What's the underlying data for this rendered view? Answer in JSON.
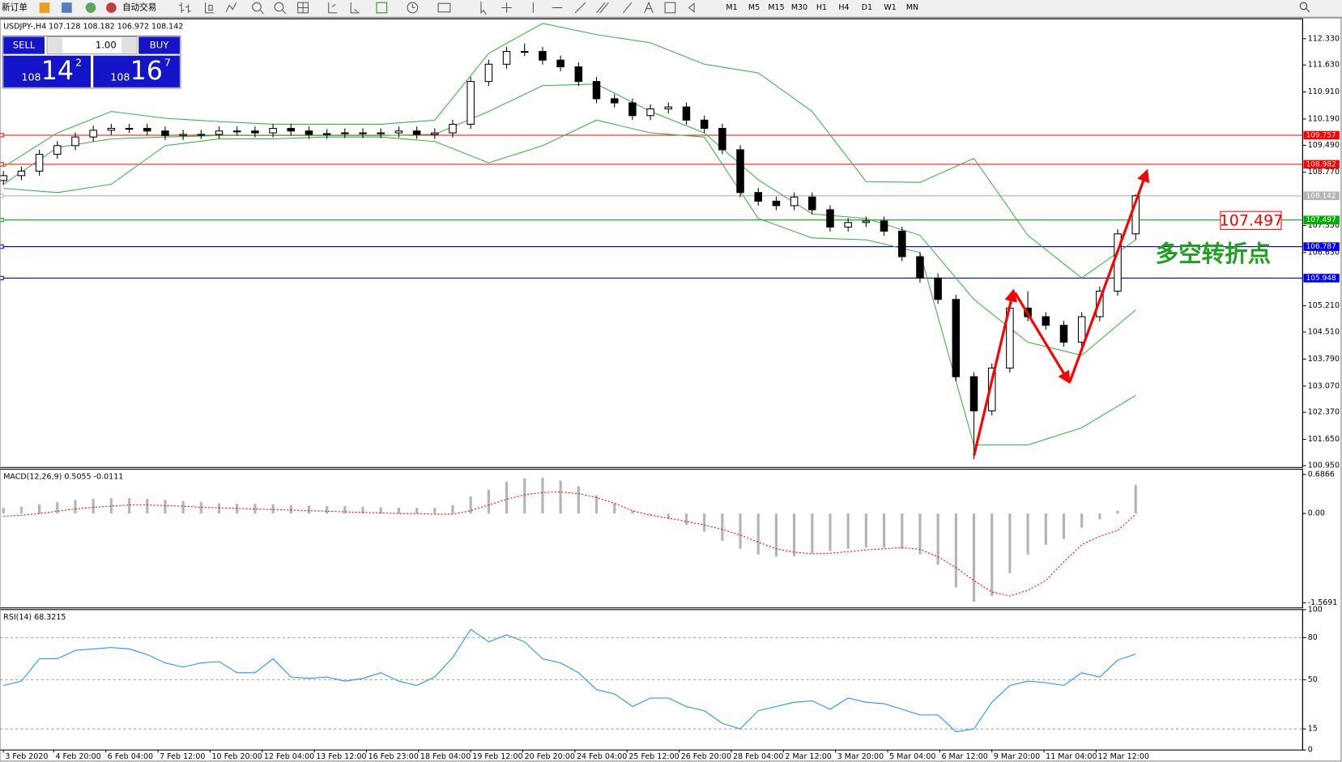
{
  "toolbar": {
    "new_order": "新订单",
    "auto_trading": "自动交易",
    "timeframes": [
      "M1",
      "M5",
      "M15",
      "M30",
      "H1",
      "H4",
      "D1",
      "W1",
      "MN"
    ]
  },
  "trade_panel": {
    "sell": "SELL",
    "lot": "1.00",
    "buy": "BUY",
    "bid": {
      "big": "108",
      "pips": "14",
      "frac": "2"
    },
    "ask": {
      "big": "108",
      "pips": "16",
      "frac": "7"
    }
  },
  "chart_data": [
    {
      "type": "candlestick",
      "title": "USDJPY-,H4  107.128 108.182 106.972 108.142",
      "up_color": "#ffffff",
      "down_color": "#000000",
      "outline_color": "#000000",
      "xlim": [
        -0.19,
        72.29
      ],
      "ylim": [
        100.9,
        112.86
      ],
      "yticks": [
        {
          "value": 112.33,
          "label": "112.330"
        },
        {
          "value": 111.63,
          "label": "111.630"
        },
        {
          "value": 110.91,
          "label": "110.910"
        },
        {
          "value": 110.19,
          "label": "110.190"
        },
        {
          "value": 109.49,
          "label": "109.490"
        },
        {
          "value": 108.77,
          "label": "108.770"
        },
        {
          "value": 107.35,
          "label": "107.350"
        },
        {
          "value": 106.63,
          "label": "106.630"
        },
        {
          "value": 105.21,
          "label": "105.210"
        },
        {
          "value": 104.51,
          "label": "104.510"
        },
        {
          "value": 103.79,
          "label": "103.790"
        },
        {
          "value": 103.07,
          "label": "103.070"
        },
        {
          "value": 102.37,
          "label": "102.370"
        },
        {
          "value": 101.65,
          "label": "101.650"
        },
        {
          "value": 100.95,
          "label": "100.950"
        }
      ],
      "x": [
        0,
        1,
        2,
        3,
        4,
        5,
        6,
        7,
        8,
        9,
        10,
        11,
        12,
        13,
        14,
        15,
        16,
        17,
        18,
        19,
        20,
        21,
        22,
        23,
        24,
        25,
        26,
        27,
        28,
        29,
        30,
        31,
        32,
        33,
        34,
        35,
        36,
        37,
        38,
        39,
        40,
        41,
        42,
        43,
        44,
        45,
        46,
        47,
        48,
        49,
        50,
        51,
        52,
        53,
        54,
        55,
        56,
        57,
        58,
        59,
        60,
        61,
        62,
        63
      ],
      "open": [
        108.55,
        108.68,
        108.8,
        109.25,
        109.48,
        109.71,
        109.89,
        109.94,
        109.94,
        109.87,
        109.75,
        109.78,
        109.78,
        109.87,
        109.87,
        109.82,
        109.94,
        109.87,
        109.78,
        109.8,
        109.82,
        109.8,
        109.82,
        109.87,
        109.78,
        109.82,
        110.05,
        111.19,
        111.65,
        111.99,
        111.99,
        111.76,
        111.58,
        111.19,
        110.73,
        110.62,
        110.28,
        110.46,
        110.51,
        110.16,
        109.94,
        109.37,
        108.23,
        108.0,
        107.88,
        108.11,
        107.77,
        107.31,
        107.43,
        107.47,
        107.2,
        106.52,
        105.95,
        105.38,
        103.32,
        102.41,
        103.55,
        105.15,
        104.92,
        104.69,
        104.24,
        104.92,
        105.6,
        107.128
      ],
      "high": [
        108.8,
        108.92,
        109.37,
        109.6,
        109.83,
        110.01,
        110.06,
        110.06,
        110.06,
        109.99,
        109.9,
        109.9,
        109.99,
        109.99,
        109.99,
        110.06,
        110.06,
        109.99,
        109.92,
        109.94,
        109.94,
        109.94,
        109.99,
        109.99,
        109.94,
        110.17,
        111.31,
        111.77,
        112.11,
        112.2,
        112.11,
        111.88,
        111.7,
        111.31,
        110.85,
        110.74,
        110.58,
        110.63,
        110.63,
        110.28,
        110.06,
        109.49,
        108.35,
        108.12,
        108.23,
        108.23,
        107.89,
        107.55,
        107.59,
        107.59,
        107.32,
        106.64,
        106.07,
        105.5,
        103.44,
        103.67,
        105.27,
        105.6,
        105.04,
        104.81,
        105.04,
        105.72,
        107.25,
        108.182
      ],
      "low": [
        108.43,
        108.56,
        108.68,
        109.13,
        109.36,
        109.59,
        109.77,
        109.82,
        109.75,
        109.63,
        109.63,
        109.66,
        109.66,
        109.75,
        109.7,
        109.7,
        109.75,
        109.66,
        109.66,
        109.68,
        109.68,
        109.68,
        109.7,
        109.66,
        109.66,
        109.7,
        109.93,
        111.07,
        111.53,
        111.87,
        111.64,
        111.46,
        111.07,
        110.61,
        110.5,
        110.16,
        110.16,
        110.34,
        110.04,
        109.82,
        109.25,
        108.11,
        107.88,
        107.76,
        107.76,
        107.65,
        107.19,
        107.19,
        107.31,
        107.08,
        106.4,
        105.83,
        105.26,
        103.2,
        101.12,
        102.29,
        103.43,
        104.8,
        104.57,
        104.12,
        104.12,
        104.8,
        105.48,
        106.972
      ],
      "close": [
        108.68,
        108.8,
        109.25,
        109.48,
        109.71,
        109.89,
        109.94,
        109.94,
        109.87,
        109.75,
        109.78,
        109.78,
        109.87,
        109.87,
        109.82,
        109.94,
        109.87,
        109.78,
        109.8,
        109.82,
        109.8,
        109.82,
        109.87,
        109.78,
        109.82,
        110.05,
        111.19,
        111.65,
        111.99,
        111.99,
        111.76,
        111.58,
        111.19,
        110.73,
        110.62,
        110.28,
        110.46,
        110.51,
        110.16,
        109.94,
        109.37,
        108.23,
        108.0,
        107.88,
        108.11,
        107.77,
        107.31,
        107.43,
        107.47,
        107.2,
        106.52,
        105.95,
        105.38,
        103.32,
        102.41,
        103.55,
        105.15,
        104.92,
        104.69,
        104.24,
        104.92,
        105.6,
        107.128,
        108.142
      ],
      "series": [
        {
          "style": "line",
          "color": "#3cb043",
          "x": [
            0,
            3,
            6,
            9,
            12,
            15,
            18,
            21,
            24,
            27,
            30,
            33,
            36,
            39,
            42,
            45,
            48,
            51,
            54,
            57,
            60,
            63
          ],
          "values": [
            108.91,
            109.82,
            110.39,
            110.21,
            110.12,
            110.05,
            110.05,
            110.05,
            110.16,
            111.94,
            112.74,
            112.44,
            112.22,
            111.65,
            111.42,
            110.39,
            108.52,
            108.5,
            109.14,
            107.09,
            105.95,
            106.97
          ]
        },
        {
          "style": "line",
          "color": "#3cb043",
          "x": [
            0,
            3,
            6,
            9,
            12,
            15,
            18,
            21,
            24,
            27,
            30,
            33,
            36,
            39,
            42,
            45,
            48,
            51,
            54,
            57,
            60,
            63
          ],
          "values": [
            108.45,
            109.43,
            109.66,
            109.71,
            109.75,
            109.75,
            109.75,
            109.75,
            109.78,
            110.39,
            111.08,
            111.12,
            110.39,
            109.82,
            108.57,
            107.66,
            107.54,
            107.09,
            105.38,
            104.24,
            103.89,
            105.1
          ]
        },
        {
          "style": "line",
          "color": "#3cb043",
          "x": [
            0,
            3,
            6,
            9,
            12,
            15,
            18,
            21,
            24,
            27,
            30,
            33,
            36,
            39,
            42,
            45,
            48,
            51,
            54,
            57,
            60,
            63
          ],
          "values": [
            108.34,
            108.23,
            108.45,
            109.48,
            109.66,
            109.66,
            109.71,
            109.71,
            109.59,
            109.02,
            109.48,
            110.16,
            109.82,
            109.71,
            107.54,
            107.02,
            106.97,
            106.63,
            101.5,
            101.5,
            101.96,
            102.82
          ]
        }
      ],
      "levels": [
        {
          "value": 109.757,
          "color": "#ff0000"
        },
        {
          "value": 108.982,
          "color": "#ff0000"
        },
        {
          "value": 108.142,
          "color": "#b4b4b4"
        },
        {
          "value": 107.497,
          "color": "#00b000"
        },
        {
          "value": 106.787,
          "color": "#0000ff"
        },
        {
          "value": 105.948,
          "color": "#0000ff"
        }
      ],
      "annotations": [
        "多空转折点"
      ]
    },
    {
      "type": "indicator",
      "title": "MACD(12,26,9) 0.5055 -0.0111",
      "xlim": [
        -0.19,
        72.29
      ],
      "ylim": [
        -1.66,
        0.78
      ],
      "yticks": [
        0.6866,
        {
          "value": 0,
          "label": "0.00"
        },
        -1.5691
      ],
      "x": [
        0,
        1,
        2,
        3,
        4,
        5,
        6,
        7,
        8,
        9,
        10,
        11,
        12,
        13,
        14,
        15,
        16,
        17,
        18,
        19,
        20,
        21,
        22,
        23,
        24,
        25,
        26,
        27,
        28,
        29,
        30,
        31,
        32,
        33,
        34,
        35,
        36,
        37,
        38,
        39,
        40,
        41,
        42,
        43,
        44,
        45,
        46,
        47,
        48,
        49,
        50,
        51,
        52,
        53,
        54,
        55,
        56,
        57,
        58,
        59,
        60,
        61,
        62,
        63
      ],
      "series": [
        {
          "style": "bar",
          "color": "#b4b4b4",
          "values": [
            0.1,
            0.12,
            0.16,
            0.2,
            0.24,
            0.26,
            0.27,
            0.27,
            0.26,
            0.24,
            0.22,
            0.2,
            0.18,
            0.17,
            0.17,
            0.16,
            0.15,
            0.14,
            0.13,
            0.13,
            0.12,
            0.11,
            0.1,
            0.1,
            0.1,
            0.15,
            0.3,
            0.42,
            0.56,
            0.62,
            0.63,
            0.58,
            0.48,
            0.32,
            0.18,
            0.05,
            -0.02,
            -0.1,
            -0.2,
            -0.32,
            -0.48,
            -0.62,
            -0.72,
            -0.76,
            -0.75,
            -0.7,
            -0.66,
            -0.62,
            -0.6,
            -0.6,
            -0.62,
            -0.72,
            -0.9,
            -1.3,
            -1.55,
            -1.45,
            -1.05,
            -0.72,
            -0.55,
            -0.45,
            -0.25,
            -0.1,
            0.05,
            0.5055
          ]
        },
        {
          "style": "dashed-line",
          "color": "#ff0000",
          "values": [
            -0.05,
            -0.03,
            0.0,
            0.04,
            0.08,
            0.11,
            0.13,
            0.15,
            0.15,
            0.14,
            0.13,
            0.11,
            0.1,
            0.09,
            0.08,
            0.07,
            0.06,
            0.05,
            0.04,
            0.03,
            0.02,
            0.01,
            0.0,
            0.0,
            -0.01,
            -0.01,
            0.05,
            0.15,
            0.25,
            0.33,
            0.37,
            0.38,
            0.35,
            0.28,
            0.18,
            0.05,
            -0.03,
            -0.08,
            -0.14,
            -0.2,
            -0.28,
            -0.38,
            -0.5,
            -0.62,
            -0.68,
            -0.71,
            -0.7,
            -0.67,
            -0.64,
            -0.62,
            -0.6,
            -0.63,
            -0.76,
            -0.95,
            -1.18,
            -1.38,
            -1.45,
            -1.35,
            -1.18,
            -0.85,
            -0.55,
            -0.4,
            -0.3,
            -0.0111
          ]
        }
      ]
    },
    {
      "type": "indicator",
      "title": "RSI(14) 68.3215",
      "xlim": [
        -0.19,
        72.29
      ],
      "ylim": [
        0,
        100
      ],
      "yticks": [
        0,
        15,
        50,
        80,
        100
      ],
      "level_lines": true,
      "x": [
        0,
        1,
        2,
        3,
        4,
        5,
        6,
        7,
        8,
        9,
        10,
        11,
        12,
        13,
        14,
        15,
        16,
        17,
        18,
        19,
        20,
        21,
        22,
        23,
        24,
        25,
        26,
        27,
        28,
        29,
        30,
        31,
        32,
        33,
        34,
        35,
        36,
        37,
        38,
        39,
        40,
        41,
        42,
        43,
        44,
        45,
        46,
        47,
        48,
        49,
        50,
        51,
        52,
        53,
        54,
        55,
        56,
        57,
        58,
        59,
        60,
        61,
        62,
        63
      ],
      "xticks": [
        {
          "value": 0,
          "label": "3 Feb 2020"
        },
        {
          "value": 2.8,
          "label": "4 Feb 20:00"
        },
        {
          "value": 5.7,
          "label": "6 Feb 04:00"
        },
        {
          "value": 8.6,
          "label": "7 Feb 12:00"
        },
        {
          "value": 11.5,
          "label": "10 Feb 20:00"
        },
        {
          "value": 14.4,
          "label": "12 Feb 04:00"
        },
        {
          "value": 17.3,
          "label": "13 Feb 12:00"
        },
        {
          "value": 20.2,
          "label": "16 Feb 23:00"
        },
        {
          "value": 23.1,
          "label": "18 Feb 04:00"
        },
        {
          "value": 26.0,
          "label": "19 Feb 12:00"
        },
        {
          "value": 28.9,
          "label": "20 Feb 20:00"
        },
        {
          "value": 31.8,
          "label": "24 Feb 04:00"
        },
        {
          "value": 34.7,
          "label": "25 Feb 12:00"
        },
        {
          "value": 37.6,
          "label": "26 Feb 20:00"
        },
        {
          "value": 40.5,
          "label": "28 Feb 04:00"
        },
        {
          "value": 43.4,
          "label": "2 Mar 12:00"
        },
        {
          "value": 46.3,
          "label": "3 Mar 20:00"
        },
        {
          "value": 49.2,
          "label": "5 Mar 04:00"
        },
        {
          "value": 52.1,
          "label": "6 Mar 12:00"
        },
        {
          "value": 55.0,
          "label": "9 Mar 20:00"
        },
        {
          "value": 57.9,
          "label": "11 Mar 04:00"
        },
        {
          "value": 60.8,
          "label": "12 Mar 12:00"
        }
      ],
      "series": [
        {
          "style": "line",
          "color": "#1e90ff",
          "values": [
            46,
            49,
            65,
            65,
            71,
            72,
            73,
            72,
            68,
            62,
            59,
            62,
            63,
            55,
            55,
            65,
            52,
            51,
            52,
            49,
            51,
            55,
            49,
            46,
            52,
            66,
            86,
            77,
            82,
            77,
            65,
            62,
            55,
            43,
            40,
            31,
            37,
            37,
            31,
            28,
            19,
            15,
            28,
            31,
            34,
            35,
            29,
            37,
            34,
            33,
            29,
            25,
            25,
            13,
            15,
            34,
            46,
            49,
            48,
            46,
            55,
            52,
            64,
            68.3215
          ]
        }
      ]
    }
  ]
}
